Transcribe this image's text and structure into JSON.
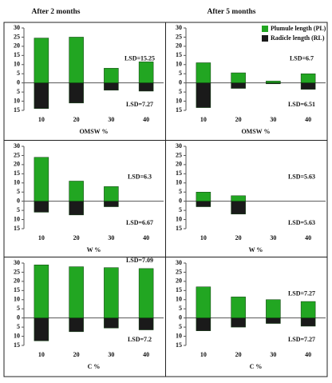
{
  "column_titles": [
    "After 2 months",
    "After 5 months"
  ],
  "chart_data": [
    {
      "type": "bar",
      "categories": [
        "10",
        "20",
        "30",
        "40"
      ],
      "series": [
        {
          "color": "#22a622",
          "values": [
            24.5,
            25,
            8,
            11.5
          ]
        },
        {
          "color": "#1a1a1a",
          "values": [
            -14,
            -11,
            -4,
            -4.5
          ]
        }
      ],
      "ylim": [
        -15,
        30
      ],
      "yticks": [
        {
          "value": -15,
          "label": "15"
        },
        {
          "value": -10,
          "label": "10"
        },
        {
          "value": -5,
          "label": "5"
        },
        0,
        5,
        10,
        15,
        20,
        25,
        30
      ],
      "xlabel": "OMSW %",
      "annotations": [
        "LSD=15.25",
        "LSD=7.27"
      ]
    },
    {
      "type": "bar",
      "categories": [
        "10",
        "20",
        "30",
        "40"
      ],
      "series": [
        {
          "name": "Plumule length (PL)",
          "color": "#22a622",
          "values": [
            11,
            5.5,
            1,
            5
          ]
        },
        {
          "name": "Radicle length (RL)",
          "color": "#1a1a1a",
          "values": [
            -13.5,
            -3,
            -0.5,
            -3.5
          ]
        }
      ],
      "ylim": [
        -15,
        30
      ],
      "yticks": [
        {
          "value": -15,
          "label": "15"
        },
        {
          "value": -10,
          "label": "10"
        },
        {
          "value": -5,
          "label": "5"
        },
        0,
        5,
        10,
        15,
        20,
        25,
        30
      ],
      "xlabel": "OMSW %",
      "annotations": [
        "LSD=6.7",
        "LSD=6.51"
      ]
    },
    {
      "type": "bar",
      "categories": [
        "10",
        "20",
        "30",
        "40"
      ],
      "series": [
        {
          "color": "#22a622",
          "values": [
            24,
            11,
            8,
            null
          ]
        },
        {
          "color": "#1a1a1a",
          "values": [
            -6,
            -7.5,
            -3,
            null
          ]
        }
      ],
      "ylim": [
        -15,
        30
      ],
      "yticks": [
        {
          "value": -15,
          "label": "15"
        },
        {
          "value": -10,
          "label": "10"
        },
        {
          "value": -5,
          "label": "5"
        },
        0,
        5,
        10,
        15,
        20,
        25,
        30
      ],
      "xlabel": "W %",
      "annotations": [
        "LSD=6.3",
        "LSD=6.67"
      ]
    },
    {
      "type": "bar",
      "categories": [
        "10",
        "20",
        "30",
        "40"
      ],
      "series": [
        {
          "color": "#22a622",
          "values": [
            5,
            3,
            null,
            null
          ]
        },
        {
          "color": "#1a1a1a",
          "values": [
            -3,
            -7,
            null,
            null
          ]
        }
      ],
      "ylim": [
        -15,
        30
      ],
      "yticks": [
        {
          "value": -15,
          "label": "15"
        },
        {
          "value": -10,
          "label": "10"
        },
        {
          "value": -5,
          "label": "5"
        },
        0,
        5,
        10,
        15,
        20,
        25,
        30
      ],
      "xlabel": "W %",
      "annotations": [
        "LSD=5.63",
        "LSD=5.63"
      ]
    },
    {
      "type": "bar",
      "categories": [
        "10",
        "20",
        "30",
        "40"
      ],
      "series": [
        {
          "color": "#22a622",
          "values": [
            29,
            28,
            27.5,
            27
          ]
        },
        {
          "color": "#1a1a1a",
          "values": [
            -12.5,
            -7.5,
            -5.5,
            -6.5
          ]
        }
      ],
      "ylim": [
        -15,
        30
      ],
      "yticks": [
        {
          "value": -15,
          "label": "15"
        },
        {
          "value": -10,
          "label": "10"
        },
        {
          "value": -5,
          "label": "5"
        },
        0,
        5,
        10,
        15,
        20,
        25,
        30
      ],
      "xlabel": "C %",
      "annotations": [
        "LSD=7.09",
        "LSD=7.2"
      ]
    },
    {
      "type": "bar",
      "categories": [
        "10",
        "20",
        "30",
        "40"
      ],
      "series": [
        {
          "color": "#22a622",
          "values": [
            17,
            11.5,
            10,
            9
          ]
        },
        {
          "color": "#1a1a1a",
          "values": [
            -7,
            -5,
            -3,
            -4.5
          ]
        }
      ],
      "ylim": [
        -15,
        30
      ],
      "yticks": [
        {
          "value": -15,
          "label": "15"
        },
        {
          "value": -10,
          "label": "10"
        },
        {
          "value": -5,
          "label": "5"
        },
        0,
        5,
        10,
        15,
        20,
        25,
        30
      ],
      "xlabel": "C %",
      "annotations": [
        "LSD=7.27",
        "LSD=7.27"
      ]
    }
  ]
}
